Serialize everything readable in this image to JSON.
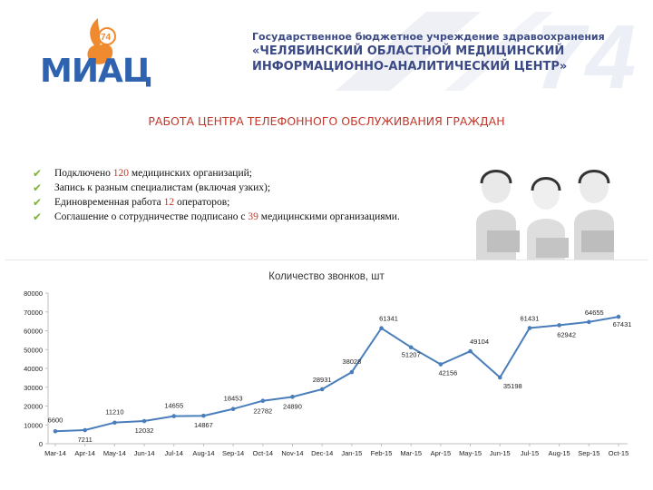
{
  "header": {
    "logo_text": "МИАЦ",
    "logo_badge": "74",
    "watermark": "74",
    "org_line1": "Государственное бюджетное учреждение здравоохранения",
    "org_line2": "«ЧЕЛЯБИНСКИЙ ОБЛАСТНОЙ МЕДИЦИНСКИЙ",
    "org_line3": "ИНФОРМАЦИОННО-АНАЛИТИЧЕСКИЙ ЦЕНТР»"
  },
  "page": {
    "title": "РАБОТА ЦЕНТРА ТЕЛЕФОННОГО ОБСЛУЖИВАНИЯ ГРАЖДАН"
  },
  "bullets": [
    {
      "pre": "Подключено ",
      "num": "120",
      "post": " медицинских организаций;"
    },
    {
      "pre": "Запись к разным специалистам (включая узких);",
      "num": "",
      "post": ""
    },
    {
      "pre": "Единовременная работа ",
      "num": "12",
      "post": " операторов;"
    },
    {
      "pre": "Соглашение о сотрудничестве подписано с ",
      "num": "39",
      "post": " медицинскими организациями."
    }
  ],
  "colors": {
    "accent_red": "#c0392b",
    "line": "#4a7ebb",
    "check": "#7fb03a",
    "org_text": "#3b4a85"
  },
  "chart_data": {
    "type": "line",
    "title": "Количество звонков, шт",
    "xlabel": "",
    "ylabel": "",
    "ylim": [
      0,
      80000
    ],
    "yticks": [
      "0",
      "10000",
      "20000",
      "30000",
      "40000",
      "50000",
      "60000",
      "70000",
      "80000"
    ],
    "grid": false,
    "legend": "none",
    "categories": [
      "Mar-14",
      "Apr-14",
      "May-14",
      "Jun-14",
      "Jul-14",
      "Aug-14",
      "Sep-14",
      "Oct-14",
      "Nov-14",
      "Dec-14",
      "Jan-15",
      "Feb-15",
      "Mar-15",
      "Apr-15",
      "May-15",
      "Jun-15",
      "Jul-15",
      "Aug-15",
      "Sep-15",
      "Oct-15"
    ],
    "values": [
      6600,
      7211,
      11210,
      12032,
      14655,
      14867,
      18453,
      22782,
      24890,
      28931,
      38028,
      61341,
      51207,
      42156,
      49104,
      35198,
      61431,
      62942,
      64655,
      67431
    ],
    "value_labels": [
      "6600",
      "7211",
      "11210",
      "12032",
      "14655",
      "14867",
      "18453",
      "22782",
      "24890",
      "28931",
      "38028",
      "61341",
      "51207",
      "42156",
      "49104",
      "35198",
      "61431",
      "62942",
      "64655",
      "67431"
    ]
  }
}
